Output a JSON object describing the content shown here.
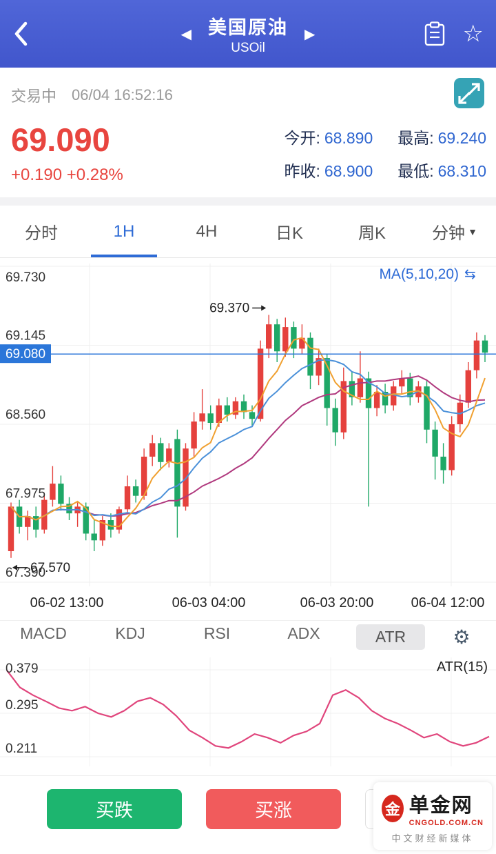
{
  "icons": {
    "prev": "◀",
    "next": "▶",
    "star": "☆",
    "caret_down": "▼",
    "gear": "⚙",
    "ma_toggle": "⇆"
  },
  "header": {
    "title": "美国原油",
    "subtitle": "USOil"
  },
  "status": {
    "state": "交易中",
    "time": "06/04 16:52:16"
  },
  "quote": {
    "price": "69.090",
    "change": "+0.190 +0.28%",
    "stats": [
      {
        "label": "今开:",
        "value": "68.890"
      },
      {
        "label": "最高:",
        "value": "69.240"
      },
      {
        "label": "昨收:",
        "value": "68.900"
      },
      {
        "label": "最低:",
        "value": "68.310"
      }
    ]
  },
  "period_tabs": {
    "items": [
      "分时",
      "1H",
      "4H",
      "日K",
      "周K",
      "分钟"
    ],
    "active": "1H"
  },
  "indicator_tabs": {
    "items": [
      "MACD",
      "KDJ",
      "RSI",
      "ADX",
      "ATR"
    ],
    "active": "ATR"
  },
  "footer": {
    "buy_down": "买跌",
    "buy_up": "买涨"
  },
  "watermark": {
    "title": "单金网",
    "domain": "CNGOLD.COM.CN",
    "tagline": "中文财经新媒体"
  },
  "chart_data": [
    {
      "type": "candlestick",
      "title": "USOil 1H",
      "ma_label": "MA(5,10,20)",
      "current_price": 69.08,
      "high_marker": 69.37,
      "low_marker": 67.57,
      "y_ticks": [
        69.73,
        69.145,
        68.56,
        67.975,
        67.39
      ],
      "x_ticks": [
        "06-02 13:00",
        "06-03 04:00",
        "06-03 20:00",
        "06-04 12:00"
      ],
      "up_color": "#e5413d",
      "down_color": "#1fa867",
      "ma_colors": {
        "ma5": "#f0a030",
        "ma10": "#4a90d9",
        "ma20": "#b0397e"
      },
      "candles": [
        [
          67.62,
          67.98,
          67.57,
          67.95
        ],
        [
          67.95,
          68.0,
          67.75,
          67.8
        ],
        [
          67.8,
          67.92,
          67.7,
          67.88
        ],
        [
          67.88,
          67.95,
          67.72,
          67.78
        ],
        [
          67.78,
          68.05,
          67.75,
          68.0
        ],
        [
          68.0,
          68.25,
          67.95,
          68.12
        ],
        [
          68.12,
          68.18,
          67.92,
          67.97
        ],
        [
          67.97,
          68.02,
          67.85,
          67.9
        ],
        [
          67.9,
          67.98,
          67.8,
          67.95
        ],
        [
          67.95,
          67.98,
          67.7,
          67.75
        ],
        [
          67.75,
          67.85,
          67.62,
          67.7
        ],
        [
          67.7,
          67.88,
          67.66,
          67.85
        ],
        [
          67.85,
          67.9,
          67.72,
          67.78
        ],
        [
          67.78,
          67.95,
          67.75,
          67.93
        ],
        [
          67.93,
          68.18,
          67.9,
          68.1
        ],
        [
          68.1,
          68.15,
          67.98,
          68.03
        ],
        [
          68.03,
          68.38,
          68.0,
          68.32
        ],
        [
          68.32,
          68.48,
          68.25,
          68.42
        ],
        [
          68.42,
          68.46,
          68.22,
          68.28
        ],
        [
          68.28,
          68.42,
          68.24,
          68.38
        ],
        [
          68.45,
          68.52,
          67.72,
          67.95
        ],
        [
          67.95,
          68.42,
          67.92,
          68.38
        ],
        [
          68.38,
          68.65,
          68.32,
          68.58
        ],
        [
          68.58,
          68.82,
          68.52,
          68.64
        ],
        [
          68.64,
          68.7,
          68.52,
          68.57
        ],
        [
          68.57,
          68.75,
          68.54,
          68.7
        ],
        [
          68.7,
          68.76,
          68.58,
          68.63
        ],
        [
          68.63,
          68.76,
          68.6,
          68.73
        ],
        [
          68.73,
          68.78,
          68.6,
          68.65
        ],
        [
          68.65,
          68.7,
          68.55,
          68.6
        ],
        [
          68.6,
          69.18,
          68.58,
          69.12
        ],
        [
          69.12,
          69.37,
          69.05,
          69.3
        ],
        [
          69.3,
          69.34,
          69.02,
          69.1
        ],
        [
          69.1,
          69.35,
          69.06,
          69.28
        ],
        [
          69.28,
          69.32,
          69.05,
          69.12
        ],
        [
          69.12,
          69.3,
          69.08,
          69.2
        ],
        [
          69.2,
          69.24,
          68.82,
          68.92
        ],
        [
          68.92,
          69.12,
          68.85,
          69.05
        ],
        [
          69.05,
          69.08,
          68.55,
          68.68
        ],
        [
          68.68,
          68.75,
          68.4,
          68.5
        ],
        [
          68.5,
          68.98,
          68.45,
          68.88
        ],
        [
          68.88,
          68.95,
          68.7,
          68.76
        ],
        [
          68.76,
          69.1,
          68.72,
          68.9
        ],
        [
          68.9,
          68.95,
          67.95,
          68.68
        ],
        [
          68.68,
          68.85,
          68.62,
          68.8
        ],
        [
          68.8,
          68.86,
          68.64,
          68.7
        ],
        [
          68.7,
          68.88,
          68.66,
          68.84
        ],
        [
          68.84,
          68.96,
          68.78,
          68.9
        ],
        [
          68.9,
          68.94,
          68.7,
          68.76
        ],
        [
          68.76,
          68.88,
          68.72,
          68.84
        ],
        [
          68.84,
          68.88,
          68.42,
          68.52
        ],
        [
          68.52,
          68.58,
          68.15,
          68.32
        ],
        [
          68.32,
          68.42,
          68.12,
          68.22
        ],
        [
          68.22,
          68.62,
          68.18,
          68.56
        ],
        [
          68.56,
          68.78,
          68.5,
          68.72
        ],
        [
          68.72,
          69.02,
          68.68,
          68.96
        ],
        [
          68.96,
          69.24,
          68.9,
          69.18
        ],
        [
          69.18,
          69.22,
          69.02,
          69.09
        ]
      ]
    },
    {
      "type": "line",
      "name": "ATR(15)",
      "y_ticks": [
        0.379,
        0.295,
        0.211
      ],
      "color": "#e0457c",
      "values": [
        0.378,
        0.345,
        0.33,
        0.318,
        0.305,
        0.3,
        0.308,
        0.295,
        0.288,
        0.3,
        0.318,
        0.325,
        0.312,
        0.29,
        0.262,
        0.248,
        0.232,
        0.228,
        0.24,
        0.255,
        0.248,
        0.238,
        0.252,
        0.26,
        0.275,
        0.33,
        0.34,
        0.325,
        0.3,
        0.285,
        0.275,
        0.262,
        0.248,
        0.255,
        0.24,
        0.232,
        0.238,
        0.25
      ]
    }
  ]
}
